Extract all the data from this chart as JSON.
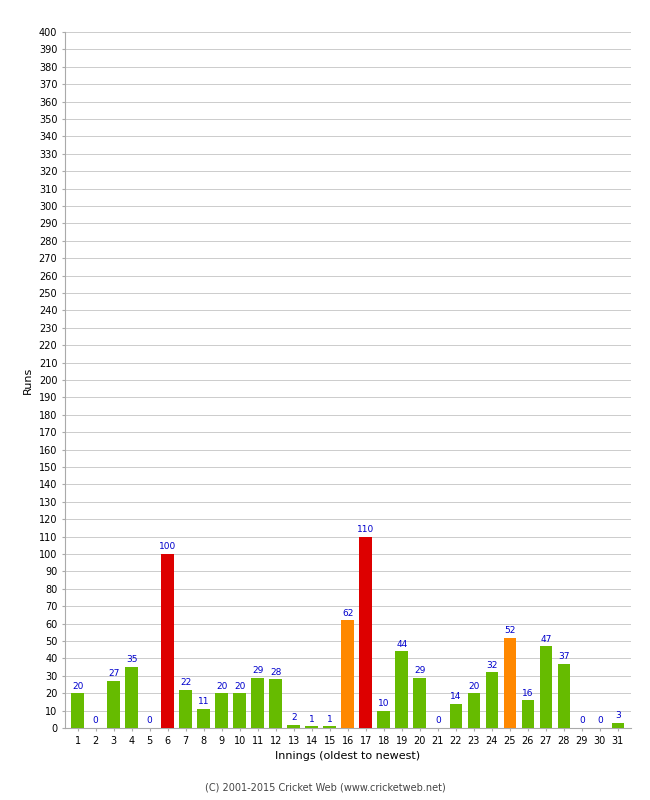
{
  "xlabel": "Innings (oldest to newest)",
  "ylabel": "Runs",
  "categories": [
    "1",
    "2",
    "3",
    "4",
    "5",
    "6",
    "7",
    "8",
    "9",
    "10",
    "11",
    "12",
    "13",
    "14",
    "15",
    "16",
    "17",
    "18",
    "19",
    "20",
    "21",
    "22",
    "23",
    "24",
    "25",
    "26",
    "27",
    "28",
    "29",
    "30",
    "31"
  ],
  "values": [
    20,
    0,
    27,
    35,
    0,
    100,
    22,
    11,
    20,
    20,
    29,
    28,
    2,
    1,
    1,
    62,
    110,
    10,
    44,
    29,
    0,
    14,
    20,
    32,
    52,
    16,
    47,
    37,
    0,
    0,
    3
  ],
  "colors": [
    "#66bb00",
    "#66bb00",
    "#66bb00",
    "#66bb00",
    "#66bb00",
    "#dd0000",
    "#66bb00",
    "#66bb00",
    "#66bb00",
    "#66bb00",
    "#66bb00",
    "#66bb00",
    "#66bb00",
    "#66bb00",
    "#66bb00",
    "#ff8800",
    "#dd0000",
    "#66bb00",
    "#66bb00",
    "#66bb00",
    "#66bb00",
    "#66bb00",
    "#66bb00",
    "#66bb00",
    "#ff8800",
    "#66bb00",
    "#66bb00",
    "#66bb00",
    "#66bb00",
    "#66bb00",
    "#66bb00"
  ],
  "label_color": "#0000cc",
  "ylim": [
    0,
    400
  ],
  "ytick_step": 10,
  "ytick_label_step": 10,
  "background_color": "#ffffff",
  "plot_bg_color": "#f0f0f0",
  "grid_color": "#cccccc",
  "footer": "(C) 2001-2015 Cricket Web (www.cricketweb.net)"
}
